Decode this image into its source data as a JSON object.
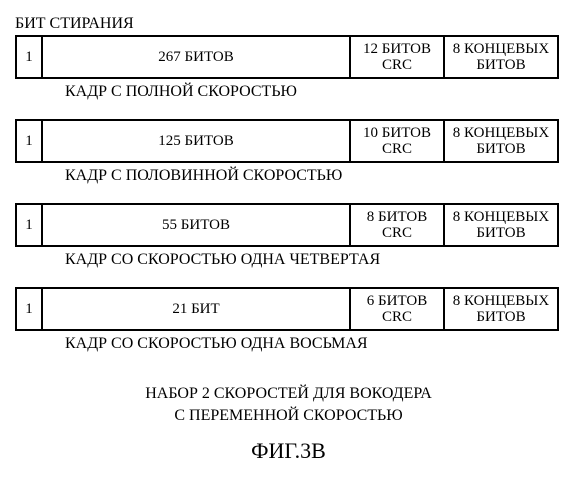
{
  "topLabel": "БИТ СТИРАНИЯ",
  "frames": [
    {
      "erase": "1",
      "data": "267 БИТОВ",
      "crc": "12 БИТОВ CRC",
      "tail": "8 КОНЦЕВЫХ БИТОВ",
      "caption": "КАДР С ПОЛНОЙ СКОРОСТЬЮ"
    },
    {
      "erase": "1",
      "data": "125 БИТОВ",
      "crc": "10 БИТОВ CRC",
      "tail": "8 КОНЦЕВЫХ БИТОВ",
      "caption": "КАДР С ПОЛОВИННОЙ СКОРОСТЬЮ"
    },
    {
      "erase": "1",
      "data": "55 БИТОВ",
      "crc": "8 БИТОВ CRC",
      "tail": "8 КОНЦЕВЫХ БИТОВ",
      "caption": "КАДР СО СКОРОСТЬЮ ОДНА ЧЕТВЕРТАЯ"
    },
    {
      "erase": "1",
      "data": "21 БИТ",
      "crc": "6 БИТОВ CRC",
      "tail": "8 КОНЦЕВЫХ БИТОВ",
      "caption": "КАДР СО СКОРОСТЬЮ ОДНА ВОСЬМАЯ"
    }
  ],
  "footerLine1": "НАБОР 2 СКОРОСТЕЙ ДЛЯ ВОКОДЕРА",
  "footerLine2": "С ПЕРЕМЕННОЙ СКОРОСТЬЮ",
  "figLabel": "ФИГ.3В",
  "colors": {
    "border": "#000000",
    "background": "#ffffff",
    "text": "#000000"
  }
}
